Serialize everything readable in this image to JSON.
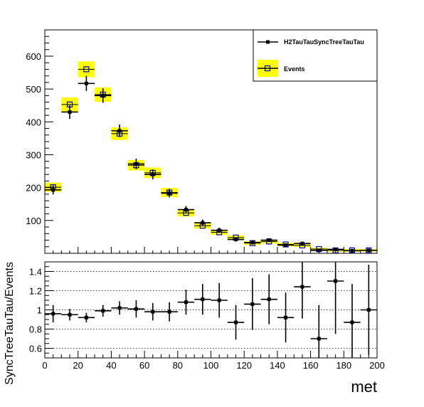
{
  "chart_data": [
    {
      "type": "scatter",
      "panel": "main",
      "xlim": [
        0,
        200
      ],
      "ylim": [
        0,
        680
      ],
      "x_centers": [
        5,
        15,
        25,
        35,
        45,
        55,
        65,
        75,
        85,
        95,
        105,
        115,
        125,
        135,
        145,
        155,
        165,
        175,
        185,
        195
      ],
      "yticks": [
        100,
        200,
        300,
        400,
        500,
        600
      ],
      "ytick_labels": [
        "100",
        "200",
        "300",
        "400",
        "500",
        "600"
      ],
      "legend_position": "top-right",
      "series": [
        {
          "name": "H2TauTauSyncTreeTauTau",
          "marker": "filled-square",
          "color": "#000000",
          "values": [
            193,
            430,
            517,
            480,
            373,
            272,
            240,
            183,
            133,
            93,
            70,
            42,
            33,
            40,
            25,
            30,
            9,
            12,
            8,
            9
          ],
          "yerr": [
            14,
            21,
            23,
            22,
            19,
            16,
            15,
            13,
            11,
            10,
            8,
            6,
            6,
            6,
            5,
            5,
            3,
            3,
            3,
            3
          ]
        },
        {
          "name": "Events",
          "marker": "open-square",
          "color": "#0000aa",
          "band_color": "#ffff00",
          "values": [
            201,
            453,
            560,
            483,
            364,
            268,
            245,
            185,
            123,
            84,
            64,
            48,
            31,
            36,
            27,
            24,
            13,
            9,
            9,
            9
          ],
          "yerr": [
            14,
            21,
            24,
            22,
            19,
            16,
            16,
            14,
            11,
            9,
            8,
            7,
            6,
            6,
            5,
            5,
            4,
            3,
            3,
            3
          ]
        }
      ]
    },
    {
      "type": "scatter",
      "panel": "ratio",
      "xlim": [
        0,
        200
      ],
      "ylim": [
        0.5,
        1.5
      ],
      "xticks": [
        0,
        20,
        40,
        60,
        80,
        100,
        120,
        140,
        160,
        180,
        200
      ],
      "xtick_labels": [
        "0",
        "20",
        "40",
        "60",
        "80",
        "100",
        "120",
        "140",
        "160",
        "180",
        "200"
      ],
      "yticks": [
        0.6,
        0.8,
        1.0,
        1.2,
        1.4
      ],
      "ytick_labels": [
        "0.6",
        "0.8",
        "1",
        "1.2",
        "1.4"
      ],
      "grid": true,
      "xlabel": "met",
      "ylabel": "SyncTreeTauTau/Events",
      "x": [
        5,
        15,
        25,
        35,
        45,
        55,
        65,
        75,
        85,
        95,
        105,
        115,
        125,
        135,
        145,
        155,
        165,
        175,
        185,
        195
      ],
      "values": [
        0.96,
        0.95,
        0.92,
        0.99,
        1.02,
        1.01,
        0.98,
        0.98,
        1.08,
        1.11,
        1.1,
        0.87,
        1.06,
        1.11,
        0.92,
        1.24,
        0.7,
        1.3,
        0.87,
        1.0
      ],
      "yerr": [
        0.09,
        0.06,
        0.05,
        0.06,
        0.07,
        0.09,
        0.09,
        0.1,
        0.13,
        0.16,
        0.18,
        0.18,
        0.27,
        0.26,
        0.26,
        0.33,
        0.35,
        0.55,
        0.4,
        0.47
      ]
    }
  ]
}
